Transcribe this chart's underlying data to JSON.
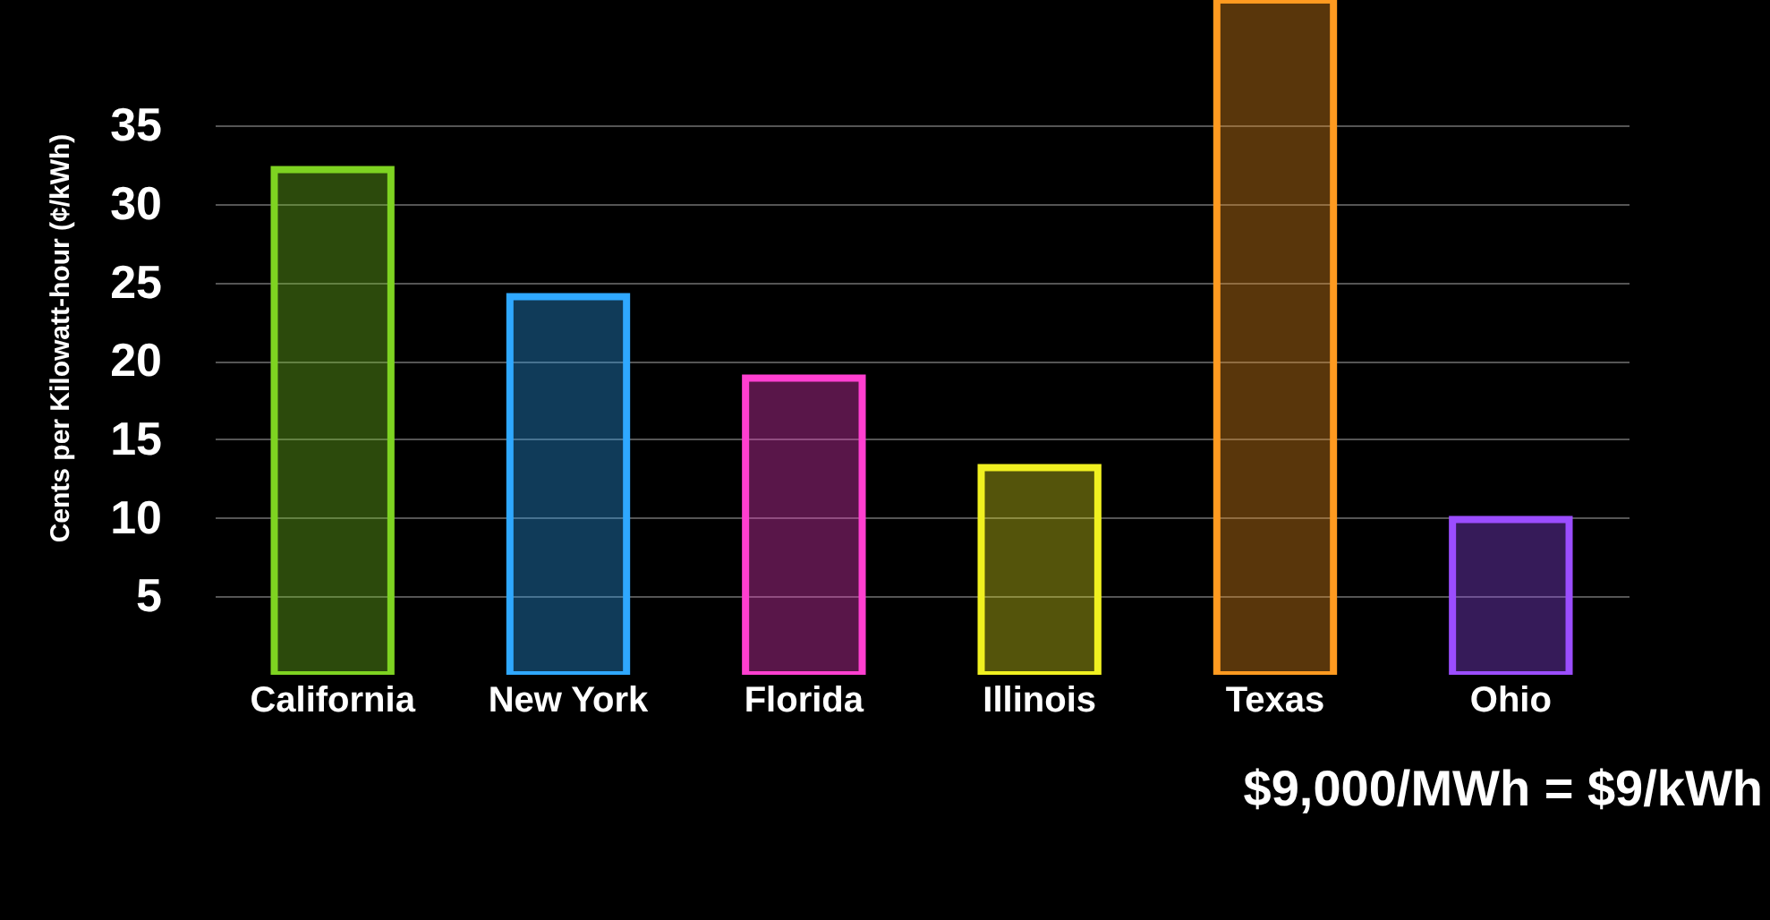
{
  "chart_data": {
    "type": "bar",
    "ylabel": "Cents per Kilowatt-hour (¢/kWh)",
    "categories": [
      "California",
      "New York",
      "Florida",
      "Illinois",
      "Texas",
      "Ohio"
    ],
    "values": [
      32.2,
      24.1,
      18.9,
      13.2,
      43,
      9.9
    ],
    "colors": [
      "#7ed321",
      "#2fa8ff",
      "#ff3fd0",
      "#f0f020",
      "#ff9a20",
      "#9b4dff"
    ],
    "ylim": [
      0,
      43
    ],
    "yticks": [
      5,
      10,
      15,
      20,
      25,
      30,
      35
    ],
    "grid": "y",
    "annotations": [
      "$9,000/MWh = $9/kWh"
    ]
  }
}
